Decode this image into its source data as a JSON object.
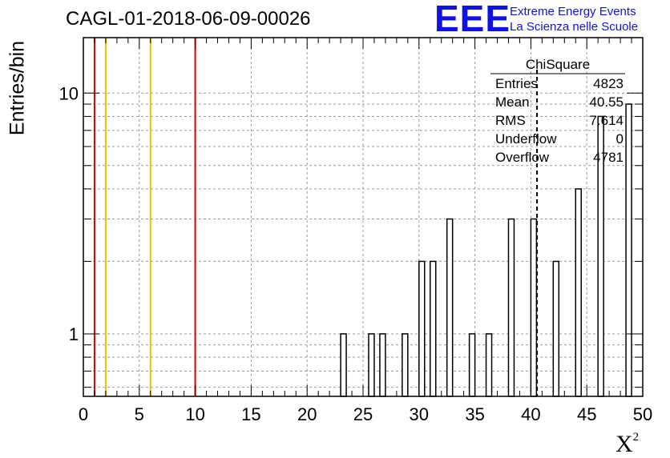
{
  "title": "CAGL-01-2018-06-09-00026",
  "logo": {
    "mark": "EEE",
    "line1": "Extreme Energy Events",
    "line2": "La Scienza nelle Scuole",
    "color": "#1010e8"
  },
  "colors": {
    "histogram": "#000000",
    "red_line": "#e00000",
    "yellow_line": "#f0c000",
    "grid": "#9a9a9a",
    "mean_line": "#000000"
  },
  "chart_data": {
    "type": "bar",
    "xlabel": "X",
    "xlabel_superscript": "2",
    "ylabel": "Entries/bin",
    "xlim": [
      0,
      50
    ],
    "ylim": [
      0.55,
      17
    ],
    "yscale": "log",
    "grid": true,
    "bin_width": 0.5,
    "xticks": [
      0,
      5,
      10,
      15,
      20,
      25,
      30,
      35,
      40,
      45,
      50
    ],
    "yticks": [
      1,
      10
    ],
    "bins": [
      {
        "x": 23.0,
        "count": 1
      },
      {
        "x": 25.5,
        "count": 1
      },
      {
        "x": 26.5,
        "count": 1
      },
      {
        "x": 28.5,
        "count": 1
      },
      {
        "x": 30.0,
        "count": 2
      },
      {
        "x": 31.0,
        "count": 2
      },
      {
        "x": 32.5,
        "count": 3
      },
      {
        "x": 34.5,
        "count": 1
      },
      {
        "x": 36.0,
        "count": 1
      },
      {
        "x": 38.0,
        "count": 3
      },
      {
        "x": 40.0,
        "count": 3
      },
      {
        "x": 42.0,
        "count": 2
      },
      {
        "x": 44.0,
        "count": 4
      },
      {
        "x": 46.0,
        "count": 8
      },
      {
        "x": 48.5,
        "count": 9
      }
    ],
    "reference_lines": [
      {
        "x": 1,
        "color": "#e00000"
      },
      {
        "x": 2,
        "color": "#f0c000"
      },
      {
        "x": 6,
        "color": "#f0c000"
      },
      {
        "x": 10,
        "color": "#e00000"
      }
    ],
    "mean_line_x": 40.55,
    "stats": {
      "name": "ChiSquare",
      "rows": [
        {
          "label": "Entries",
          "value": "4823"
        },
        {
          "label": "Mean",
          "value": "40.55"
        },
        {
          "label": "RMS",
          "value": "7.614"
        },
        {
          "label": "Underflow",
          "value": "0"
        },
        {
          "label": "Overflow",
          "value": "4781"
        }
      ]
    }
  }
}
